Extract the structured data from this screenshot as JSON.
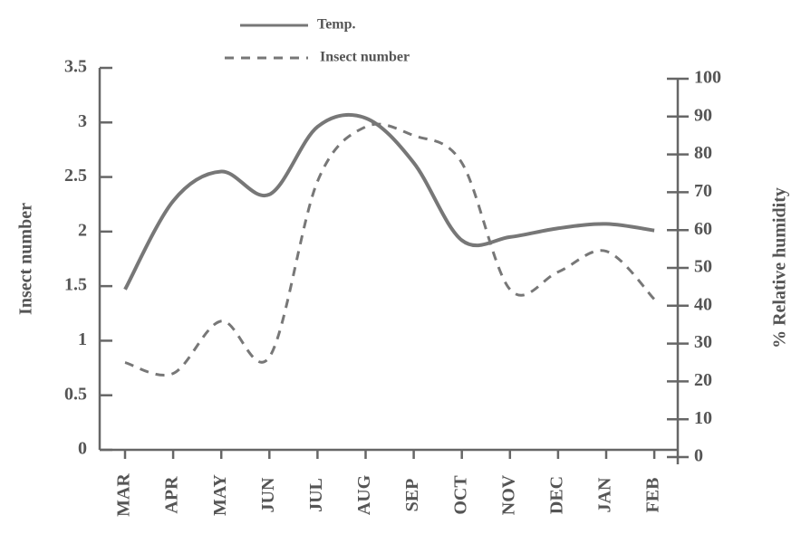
{
  "chart_data": {
    "type": "line",
    "y_label": "Insect number",
    "y2_label": "% Relative humidity",
    "categories": [
      "MAR",
      "APR",
      "MAY",
      "JUN",
      "JUL",
      "AUG",
      "SEP",
      "OCT",
      "NOV",
      "DEC",
      "JAN",
      "FEB"
    ],
    "series": [
      {
        "name": "Temp.",
        "color": "#777777",
        "dash": false,
        "values": [
          1.47,
          2.28,
          2.55,
          2.34,
          2.96,
          3.04,
          2.63,
          1.92,
          1.95,
          2.03,
          2.07,
          2.01
        ]
      },
      {
        "name": "Insect number",
        "color": "#777777",
        "dash": true,
        "values": [
          0.8,
          0.7,
          1.18,
          0.85,
          2.46,
          2.96,
          2.88,
          2.63,
          1.47,
          1.63,
          1.82,
          1.38
        ]
      }
    ],
    "ylim": [
      0,
      3.5
    ],
    "yticks": [
      0,
      0.5,
      1,
      1.5,
      2,
      2.5,
      3,
      3.5
    ],
    "y2lim": [
      0,
      100
    ],
    "y2ticks": [
      0,
      10,
      20,
      30,
      40,
      50,
      60,
      70,
      80,
      90,
      100
    ],
    "legend": "top"
  }
}
